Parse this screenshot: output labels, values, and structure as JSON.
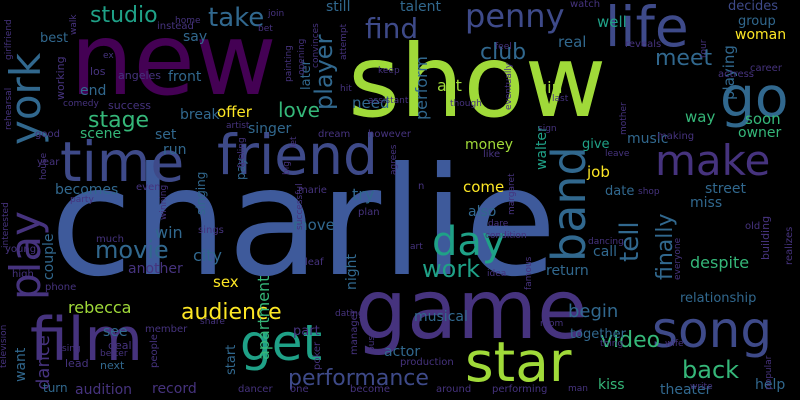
{
  "palette": {
    "dark_purple": "#440154",
    "purple": "#46337e",
    "indigo": "#3e4a89",
    "blue": "#365c8d",
    "steel": "#31688e",
    "teal": "#277f8e",
    "teal_green": "#1fa187",
    "green": "#35b779",
    "lime": "#a0da39",
    "yellow": "#fde725"
  },
  "words": [
    {
      "text": "charlie",
      "color": "#3e5a9b",
      "vertical": false
    },
    {
      "text": "show",
      "color": "#a0da39",
      "vertical": false
    },
    {
      "text": "new",
      "color": "#440154",
      "vertical": false
    },
    {
      "text": "game",
      "color": "#46337e",
      "vertical": false
    },
    {
      "text": "friend",
      "color": "#3e4a89",
      "vertical": false
    },
    {
      "text": "time",
      "color": "#3e4a89",
      "vertical": false
    },
    {
      "text": "film",
      "color": "#46337e",
      "vertical": false
    },
    {
      "text": "life",
      "color": "#3e4a89",
      "vertical": false
    },
    {
      "text": "star",
      "color": "#a0da39",
      "vertical": false
    },
    {
      "text": "song",
      "color": "#3e4a89",
      "vertical": false
    },
    {
      "text": "go",
      "color": "#31688e",
      "vertical": false
    },
    {
      "text": "make",
      "color": "#46337e",
      "vertical": false
    },
    {
      "text": "york",
      "color": "#31688e",
      "vertical": true
    },
    {
      "text": "play",
      "color": "#46337e",
      "vertical": true
    },
    {
      "text": "band",
      "color": "#31688e",
      "vertical": true
    },
    {
      "text": "get",
      "color": "#1fa187",
      "vertical": false
    },
    {
      "text": "day",
      "color": "#1fa187",
      "vertical": false
    },
    {
      "text": "penny",
      "color": "#3e4a89",
      "vertical": false
    },
    {
      "text": "studio",
      "color": "#1fa187",
      "vertical": false
    },
    {
      "text": "take",
      "color": "#31688e",
      "vertical": false
    },
    {
      "text": "find",
      "color": "#3e4a89",
      "vertical": false
    },
    {
      "text": "club",
      "color": "#31688e",
      "vertical": false
    },
    {
      "text": "meet",
      "color": "#31688e",
      "vertical": false
    },
    {
      "text": "work",
      "color": "#1fa187",
      "vertical": false
    },
    {
      "text": "movie",
      "color": "#31688e",
      "vertical": false
    },
    {
      "text": "stage",
      "color": "#35b779",
      "vertical": false
    },
    {
      "text": "love",
      "color": "#35b779",
      "vertical": false
    },
    {
      "text": "audience",
      "color": "#fde725",
      "vertical": false
    },
    {
      "text": "performance",
      "color": "#3e4a89",
      "vertical": false
    },
    {
      "text": "video",
      "color": "#35b779",
      "vertical": false
    },
    {
      "text": "back",
      "color": "#35b779",
      "vertical": false
    },
    {
      "text": "tell",
      "color": "#31688e",
      "vertical": true
    },
    {
      "text": "finally",
      "color": "#31688e",
      "vertical": true
    },
    {
      "text": "player",
      "color": "#31688e",
      "vertical": true
    },
    {
      "text": "begin",
      "color": "#31688e",
      "vertical": false
    },
    {
      "text": "city",
      "color": "#31688e",
      "vertical": false
    },
    {
      "text": "win",
      "color": "#31688e",
      "vertical": false
    },
    {
      "text": "dance",
      "color": "#46337e",
      "vertical": true
    },
    {
      "text": "want",
      "color": "#31688e",
      "vertical": true
    },
    {
      "text": "apartment",
      "color": "#35b779",
      "vertical": true
    },
    {
      "text": "offer",
      "color": "#fde725",
      "vertical": false
    },
    {
      "text": "sex",
      "color": "#fde725",
      "vertical": false
    },
    {
      "text": "rebecca",
      "color": "#a0da39",
      "vertical": false
    },
    {
      "text": "come",
      "color": "#fde725",
      "vertical": false
    },
    {
      "text": "job",
      "color": "#fde725",
      "vertical": false
    },
    {
      "text": "woman",
      "color": "#fde725",
      "vertical": false
    },
    {
      "text": "girl",
      "color": "#a0da39",
      "vertical": false
    },
    {
      "text": "act",
      "color": "#a0da39",
      "vertical": false
    },
    {
      "text": "money",
      "color": "#a0da39",
      "vertical": false
    },
    {
      "text": "walter",
      "color": "#1fa187",
      "vertical": true
    },
    {
      "text": "perform",
      "color": "#31688e",
      "vertical": true
    },
    {
      "text": "need",
      "color": "#31688e",
      "vertical": false
    },
    {
      "text": "still",
      "color": "#31688e",
      "vertical": false
    },
    {
      "text": "talent",
      "color": "#31688e",
      "vertical": false
    },
    {
      "text": "later",
      "color": "#31688e",
      "vertical": true
    },
    {
      "text": "real",
      "color": "#31688e",
      "vertical": false
    },
    {
      "text": "well",
      "color": "#1fa187",
      "vertical": false
    },
    {
      "text": "group",
      "color": "#31688e",
      "vertical": false
    },
    {
      "text": "decides",
      "color": "#3e4a89",
      "vertical": false
    },
    {
      "text": "playing",
      "color": "#31688e",
      "vertical": true
    },
    {
      "text": "soon",
      "color": "#35b779",
      "vertical": false
    },
    {
      "text": "owner",
      "color": "#35b779",
      "vertical": false
    },
    {
      "text": "way",
      "color": "#35b779",
      "vertical": false
    },
    {
      "text": "music",
      "color": "#31688e",
      "vertical": false
    },
    {
      "text": "give",
      "color": "#1fa187",
      "vertical": false
    },
    {
      "text": "date",
      "color": "#31688e",
      "vertical": false
    },
    {
      "text": "street",
      "color": "#31688e",
      "vertical": false
    },
    {
      "text": "miss",
      "color": "#31688e",
      "vertical": false
    },
    {
      "text": "despite",
      "color": "#35b779",
      "vertical": false
    },
    {
      "text": "relationship",
      "color": "#31688e",
      "vertical": false
    },
    {
      "text": "kiss",
      "color": "#35b779",
      "vertical": false
    },
    {
      "text": "theater",
      "color": "#31688e",
      "vertical": false
    },
    {
      "text": "help",
      "color": "#31688e",
      "vertical": false
    },
    {
      "text": "together",
      "color": "#31688e",
      "vertical": false
    },
    {
      "text": "return",
      "color": "#31688e",
      "vertical": false
    },
    {
      "text": "call",
      "color": "#31688e",
      "vertical": false
    },
    {
      "text": "musical",
      "color": "#31688e",
      "vertical": false
    },
    {
      "text": "night",
      "color": "#31688e",
      "vertical": true
    },
    {
      "text": "also",
      "color": "#31688e",
      "vertical": false
    },
    {
      "text": "try",
      "color": "#31688e",
      "vertical": false
    },
    {
      "text": "move",
      "color": "#31688e",
      "vertical": false
    },
    {
      "text": "part",
      "color": "#46337e",
      "vertical": false
    },
    {
      "text": "actor",
      "color": "#31688e",
      "vertical": false
    },
    {
      "text": "record",
      "color": "#46337e",
      "vertical": false
    },
    {
      "text": "audition",
      "color": "#46337e",
      "vertical": false
    },
    {
      "text": "start",
      "color": "#31688e",
      "vertical": true
    },
    {
      "text": "see",
      "color": "#31688e",
      "vertical": false
    },
    {
      "text": "couple",
      "color": "#31688e",
      "vertical": true
    },
    {
      "text": "becomes",
      "color": "#31688e",
      "vertical": false
    },
    {
      "text": "another",
      "color": "#46337e",
      "vertical": false
    },
    {
      "text": "singer",
      "color": "#31688e",
      "vertical": false
    },
    {
      "text": "break",
      "color": "#31688e",
      "vertical": false
    },
    {
      "text": "front",
      "color": "#31688e",
      "vertical": false
    },
    {
      "text": "set",
      "color": "#31688e",
      "vertical": false
    },
    {
      "text": "run",
      "color": "#31688e",
      "vertical": false
    },
    {
      "text": "scene",
      "color": "#35b779",
      "vertical": false
    },
    {
      "text": "end",
      "color": "#31688e",
      "vertical": false
    },
    {
      "text": "say",
      "color": "#31688e",
      "vertical": false
    },
    {
      "text": "best",
      "color": "#31688e",
      "vertical": false
    },
    {
      "text": "turn",
      "color": "#31688e",
      "vertical": false
    },
    {
      "text": "lead",
      "color": "#46337e",
      "vertical": false
    },
    {
      "text": "next",
      "color": "#31688e",
      "vertical": false
    },
    {
      "text": "deal",
      "color": "#46337e",
      "vertical": false
    },
    {
      "text": "singing",
      "color": "#31688e",
      "vertical": true
    },
    {
      "text": "pay",
      "color": "#31688e",
      "vertical": true
    },
    {
      "text": "success",
      "color": "#46337e",
      "vertical": false
    },
    {
      "text": "working",
      "color": "#46337e",
      "vertical": true
    },
    {
      "text": "los",
      "color": "#46337e",
      "vertical": false
    },
    {
      "text": "angeles",
      "color": "#46337e",
      "vertical": false
    },
    {
      "text": "home",
      "color": "#46337e",
      "vertical": false
    },
    {
      "text": "instead",
      "color": "#46337e",
      "vertical": false
    },
    {
      "text": "bet",
      "color": "#46337e",
      "vertical": false
    },
    {
      "text": "join",
      "color": "#46337e",
      "vertical": false
    },
    {
      "text": "watch",
      "color": "#46337e",
      "vertical": false
    },
    {
      "text": "reveals",
      "color": "#46337e",
      "vertical": false
    },
    {
      "text": "actress",
      "color": "#46337e",
      "vertical": false
    },
    {
      "text": "career",
      "color": "#46337e",
      "vertical": false
    },
    {
      "text": "sings",
      "color": "#46337e",
      "vertical": false
    },
    {
      "text": "leaf",
      "color": "#46337e",
      "vertical": false
    },
    {
      "text": "plan",
      "color": "#46337e",
      "vertical": false
    },
    {
      "text": "manager",
      "color": "#46337e",
      "vertical": true
    },
    {
      "text": "dating",
      "color": "#46337e",
      "vertical": false
    },
    {
      "text": "poker",
      "color": "#46337e",
      "vertical": true
    },
    {
      "text": "bus",
      "color": "#46337e",
      "vertical": true
    },
    {
      "text": "production",
      "color": "#46337e",
      "vertical": false
    },
    {
      "text": "performing",
      "color": "#46337e",
      "vertical": false
    },
    {
      "text": "around",
      "color": "#46337e",
      "vertical": false
    },
    {
      "text": "become",
      "color": "#46337e",
      "vertical": false
    },
    {
      "text": "dancer",
      "color": "#46337e",
      "vertical": false
    },
    {
      "text": "one",
      "color": "#46337e",
      "vertical": false
    },
    {
      "text": "member",
      "color": "#46337e",
      "vertical": false
    },
    {
      "text": "share",
      "color": "#46337e",
      "vertical": false
    },
    {
      "text": "people",
      "color": "#46337e",
      "vertical": true
    },
    {
      "text": "better",
      "color": "#46337e",
      "vertical": false
    },
    {
      "text": "sing",
      "color": "#46337e",
      "vertical": false
    },
    {
      "text": "much",
      "color": "#46337e",
      "vertical": false
    },
    {
      "text": "high",
      "color": "#46337e",
      "vertical": false
    },
    {
      "text": "phone",
      "color": "#46337e",
      "vertical": false
    },
    {
      "text": "television",
      "color": "#46337e",
      "vertical": true
    },
    {
      "text": "young",
      "color": "#46337e",
      "vertical": false
    },
    {
      "text": "interested",
      "color": "#46337e",
      "vertical": true
    },
    {
      "text": "house",
      "color": "#46337e",
      "vertical": true
    },
    {
      "text": "year",
      "color": "#46337e",
      "vertical": false
    },
    {
      "text": "good",
      "color": "#46337e",
      "vertical": false
    },
    {
      "text": "comedy",
      "color": "#46337e",
      "vertical": false
    },
    {
      "text": "rehearsal",
      "color": "#46337e",
      "vertical": true
    },
    {
      "text": "girlfriend",
      "color": "#46337e",
      "vertical": true
    },
    {
      "text": "walk",
      "color": "#46337e",
      "vertical": true
    },
    {
      "text": "ex",
      "color": "#46337e",
      "vertical": false
    },
    {
      "text": "party",
      "color": "#46337e",
      "vertical": false
    },
    {
      "text": "even",
      "color": "#46337e",
      "vertical": false
    },
    {
      "text": "winning",
      "color": "#46337e",
      "vertical": true
    },
    {
      "text": "artist",
      "color": "#46337e",
      "vertical": false
    },
    {
      "text": "feeling",
      "color": "#46337e",
      "vertical": true
    },
    {
      "text": "big",
      "color": "#46337e",
      "vertical": true
    },
    {
      "text": "let",
      "color": "#46337e",
      "vertical": true
    },
    {
      "text": "dream",
      "color": "#46337e",
      "vertical": false
    },
    {
      "text": "however",
      "color": "#46337e",
      "vertical": false
    },
    {
      "text": "marie",
      "color": "#46337e",
      "vertical": false
    },
    {
      "text": "successful",
      "color": "#46337e",
      "vertical": true
    },
    {
      "text": "agrees",
      "color": "#46337e",
      "vertical": true
    },
    {
      "text": "n",
      "color": "#46337e",
      "vertical": false
    },
    {
      "text": "margaret",
      "color": "#46337e",
      "vertical": true
    },
    {
      "text": "dare",
      "color": "#46337e",
      "vertical": false
    },
    {
      "text": "condition",
      "color": "#46337e",
      "vertical": false
    },
    {
      "text": "famous",
      "color": "#46337e",
      "vertical": true
    },
    {
      "text": "idea",
      "color": "#46337e",
      "vertical": false
    },
    {
      "text": "art",
      "color": "#46337e",
      "vertical": false
    },
    {
      "text": "dancing",
      "color": "#46337e",
      "vertical": false
    },
    {
      "text": "shop",
      "color": "#46337e",
      "vertical": false
    },
    {
      "text": "everyone",
      "color": "#46337e",
      "vertical": true
    },
    {
      "text": "old",
      "color": "#46337e",
      "vertical": false
    },
    {
      "text": "building",
      "color": "#46337e",
      "vertical": true
    },
    {
      "text": "realizes",
      "color": "#46337e",
      "vertical": true
    },
    {
      "text": "wife",
      "color": "#46337e",
      "vertical": false
    },
    {
      "text": "popular",
      "color": "#46337e",
      "vertical": true
    },
    {
      "text": "man",
      "color": "#46337e",
      "vertical": false
    },
    {
      "text": "write",
      "color": "#46337e",
      "vertical": false
    },
    {
      "text": "room",
      "color": "#46337e",
      "vertical": false
    },
    {
      "text": "thing",
      "color": "#46337e",
      "vertical": false
    },
    {
      "text": "leave",
      "color": "#46337e",
      "vertical": false
    },
    {
      "text": "like",
      "color": "#46337e",
      "vertical": false
    },
    {
      "text": "sign",
      "color": "#46337e",
      "vertical": false
    },
    {
      "text": "making",
      "color": "#46337e",
      "vertical": false
    },
    {
      "text": "mother",
      "color": "#46337e",
      "vertical": true
    },
    {
      "text": "last",
      "color": "#46337e",
      "vertical": false
    },
    {
      "text": "though",
      "color": "#46337e",
      "vertical": false
    },
    {
      "text": "eventually",
      "color": "#46337e",
      "vertical": true
    },
    {
      "text": "feel",
      "color": "#46337e",
      "vertical": false
    },
    {
      "text": "keep",
      "color": "#46337e",
      "vertical": false
    },
    {
      "text": "assistant",
      "color": "#46337e",
      "vertical": false
    },
    {
      "text": "attempt",
      "color": "#46337e",
      "vertical": true
    },
    {
      "text": "convinces",
      "color": "#46337e",
      "vertical": true
    },
    {
      "text": "opening",
      "color": "#46337e",
      "vertical": true
    },
    {
      "text": "painting",
      "color": "#46337e",
      "vertical": true
    },
    {
      "text": "hit",
      "color": "#46337e",
      "vertical": false
    },
    {
      "text": "tour",
      "color": "#46337e",
      "vertical": true
    }
  ]
}
